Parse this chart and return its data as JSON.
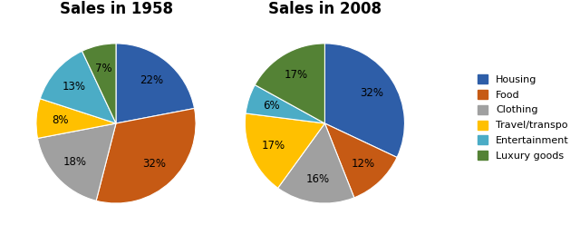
{
  "title1": "Sales in 1958",
  "title2": "Sales in 2008",
  "legend_labels": [
    "Housing",
    "Food",
    "Clothing",
    "Travel/transpo",
    "Entertainment",
    "Luxury goods"
  ],
  "values_1958": [
    22,
    32,
    18,
    8,
    13,
    7
  ],
  "values_2008": [
    32,
    12,
    16,
    17,
    6,
    17
  ],
  "colors": [
    "#2E5EA8",
    "#C65A14",
    "#A0A0A0",
    "#FFC000",
    "#4BACC6",
    "#548235"
  ],
  "startangle_1958": 90,
  "startangle_2008": 90,
  "title_fontsize": 12,
  "label_fontsize": 8.5,
  "background_color": "#FFFFFF",
  "pctdistance": 0.7
}
